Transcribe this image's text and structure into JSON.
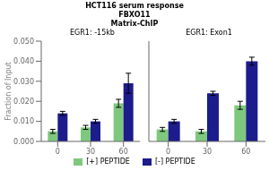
{
  "title": [
    "HCT116 serum response",
    "FBXO11",
    "Matrix-ChIP"
  ],
  "chart_data": [
    {
      "type": "bar",
      "title": "EGR1: -15kb",
      "ylabel": "Fraction of Input",
      "categories": [
        "0",
        "30",
        "60"
      ],
      "series": [
        {
          "name": "[+] PEPTIDE",
          "color": "#7EC87E",
          "values": [
            0.005,
            0.007,
            0.019
          ],
          "errors": [
            0.001,
            0.001,
            0.002
          ]
        },
        {
          "name": "[-] PEPTIDE",
          "color": "#1C1C8C",
          "values": [
            0.014,
            0.01,
            0.029
          ],
          "errors": [
            0.001,
            0.001,
            0.005
          ]
        }
      ],
      "ylim": [
        0,
        0.05
      ],
      "yticks": [
        {
          "value": 0.0,
          "label": "0.000"
        },
        {
          "value": 0.01,
          "label": "0.010"
        },
        {
          "value": 0.02,
          "label": "0.020"
        },
        {
          "value": 0.03,
          "label": "0.030"
        },
        {
          "value": 0.04,
          "label": "0.040"
        },
        {
          "value": 0.05,
          "label": "0.050"
        }
      ],
      "grid": false
    },
    {
      "type": "bar",
      "title": "EGR1: Exon1",
      "categories": [
        "0",
        "30",
        "60"
      ],
      "series": [
        {
          "name": "[+] PEPTIDE",
          "color": "#7EC87E",
          "values": [
            0.006,
            0.005,
            0.018
          ],
          "errors": [
            0.001,
            0.001,
            0.002
          ]
        },
        {
          "name": "[-] PEPTIDE",
          "color": "#1C1C8C",
          "values": [
            0.01,
            0.024,
            0.04
          ],
          "errors": [
            0.001,
            0.001,
            0.002
          ]
        }
      ],
      "ylim": [
        0,
        0.05
      ],
      "yticks": [
        {
          "value": 0.0,
          "label": "0.000"
        },
        {
          "value": 0.01,
          "label": "0.010"
        },
        {
          "value": 0.02,
          "label": "0.020"
        },
        {
          "value": 0.03,
          "label": "0.030"
        },
        {
          "value": 0.04,
          "label": "0.040"
        },
        {
          "value": 0.05,
          "label": "0.050"
        }
      ],
      "tick_labels": "x",
      "grid": false
    }
  ]
}
